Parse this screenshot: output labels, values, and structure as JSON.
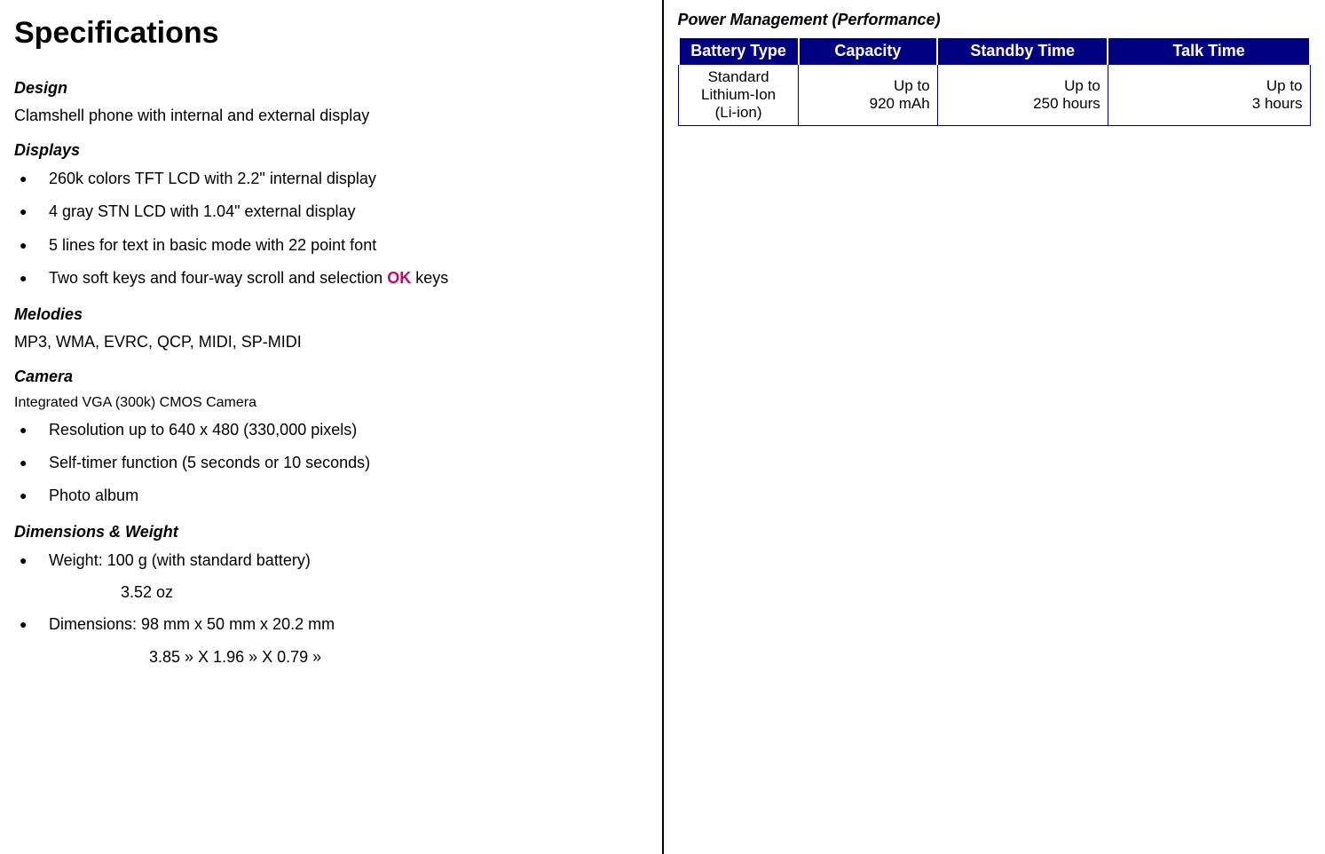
{
  "colors": {
    "header_bg": "#000080",
    "header_text": "#ffffff",
    "border": "#000080",
    "accent": "#d6006c",
    "text": "#000000"
  },
  "left": {
    "title": "Specifications",
    "design": {
      "heading": "Design",
      "text": "Clamshell phone with internal and external display"
    },
    "displays": {
      "heading": "Displays",
      "items": [
        "260k colors TFT LCD with 2.2\" internal display",
        "4 gray STN LCD with 1.04\" external display",
        "5 lines for text in basic mode with 22 point font"
      ],
      "last_item_prefix": "Two soft keys and four-way scroll and selection ",
      "last_item_ok": "OK",
      "last_item_suffix": " keys"
    },
    "melodies": {
      "heading": "Melodies",
      "text": "MP3, WMA, EVRC, QCP, MIDI, SP-MIDI"
    },
    "camera": {
      "heading": "Camera",
      "subtext": "Integrated VGA (300k) CMOS Camera",
      "items": [
        "Resolution up to 640 x 480 (330,000 pixels)",
        "Self-timer function (5 seconds or 10 seconds)",
        "Photo album"
      ]
    },
    "dimensions": {
      "heading": "Dimensions & Weight",
      "weight_line": "Weight: 100 g (with standard battery)",
      "weight_sub": "3.52 oz",
      "dim_line": "Dimensions: 98 mm x 50 mm x 20.2 mm",
      "dim_sub": "3.85 » X  1.96 » X  0.79 »"
    }
  },
  "right": {
    "heading": "Power Management (Performance)",
    "table": {
      "columns": [
        "Battery Type",
        "Capacity",
        "Standby Time",
        "Talk Time"
      ],
      "col_widths": [
        "19%",
        "22%",
        "27%",
        "32%"
      ],
      "rows": [
        {
          "battery_type": "Standard\nLithium-Ion\n(Li-ion)",
          "capacity": "Up to\n920 mAh",
          "standby": "Up to\n250 hours",
          "talk": "Up to\n3 hours"
        }
      ]
    }
  }
}
